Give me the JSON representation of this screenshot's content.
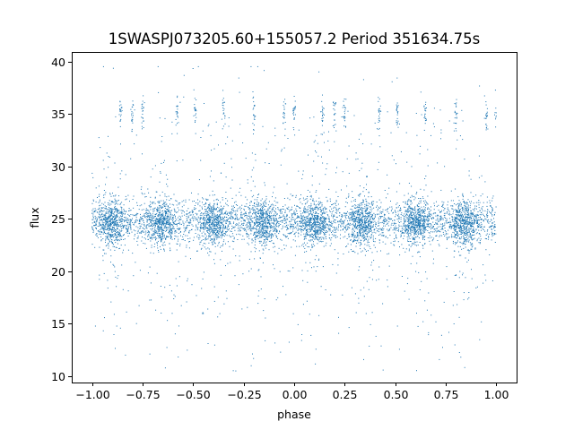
{
  "chart_data": {
    "type": "scatter",
    "title": "1SWASPJ073205.60+155057.2 Period 351634.75s",
    "xlabel": "phase",
    "ylabel": "flux",
    "xlim": [
      -1.1,
      1.1
    ],
    "ylim": [
      9.4,
      40.9
    ],
    "xticks": [
      -1.0,
      -0.75,
      -0.5,
      -0.25,
      0.0,
      0.25,
      0.5,
      0.75,
      1.0
    ],
    "xtick_labels": [
      "−1.00",
      "−0.75",
      "−0.50",
      "−0.25",
      "0.00",
      "0.25",
      "0.50",
      "0.75",
      "1.00"
    ],
    "yticks": [
      10,
      15,
      20,
      25,
      30,
      35,
      40
    ],
    "ytick_labels": [
      "10",
      "15",
      "20",
      "25",
      "30",
      "35",
      "40"
    ],
    "grid": false,
    "legend": "none",
    "color": "#1f77b4",
    "series": [
      {
        "phase_range": [
          -1.0,
          1.0
        ],
        "baseline_flux": 24.8,
        "baseline_scatter": 1.4,
        "clusters": [
          {
            "phase": -0.9,
            "flux": 24.5
          },
          {
            "phase": -0.66,
            "flux": 24.5
          },
          {
            "phase": -0.4,
            "flux": 24.5
          },
          {
            "phase": -0.16,
            "flux": 24.5
          },
          {
            "phase": 0.1,
            "flux": 24.5
          },
          {
            "phase": 0.34,
            "flux": 24.5
          },
          {
            "phase": 0.6,
            "flux": 24.5
          },
          {
            "phase": 0.84,
            "flux": 24.5
          }
        ],
        "high_state_flux": 35.0,
        "high_state_phases": [
          -0.86,
          -0.8,
          -0.75,
          -0.58,
          -0.49,
          -0.35,
          -0.2,
          -0.05,
          0.0,
          0.14,
          0.2,
          0.25,
          0.42,
          0.51,
          0.65,
          0.8,
          0.95,
          1.0
        ],
        "outlier_flux_range": [
          10.5,
          39.5
        ]
      }
    ]
  }
}
